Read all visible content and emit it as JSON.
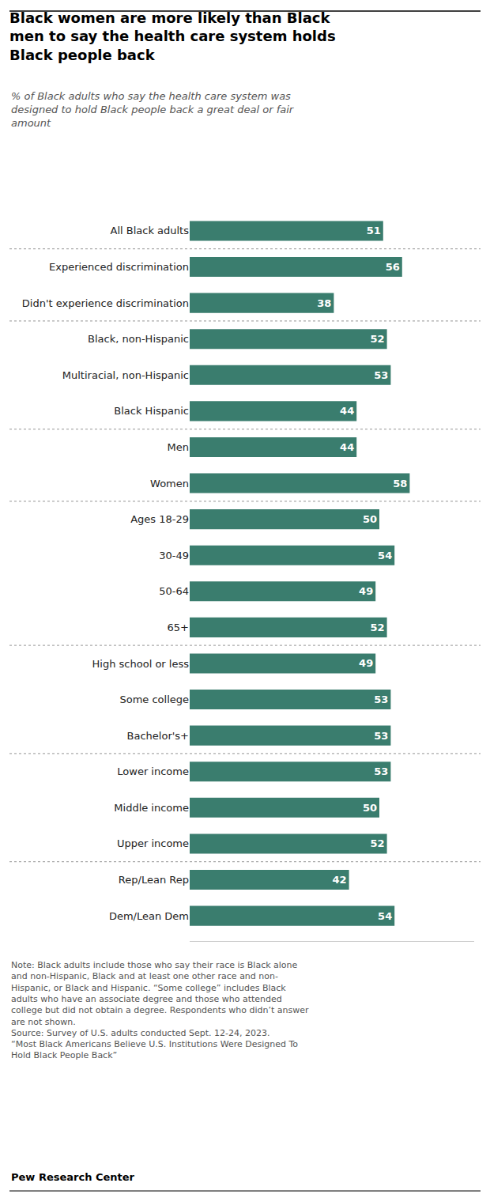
{
  "chart_data": {
    "type": "bar",
    "orientation": "horizontal",
    "title": "Black women are more likely than Black\nmen to say the health care system holds\nBlack people back",
    "subtitle": "% of Black adults who say the health care system was\ndesigned to hold Black people back a great deal or fair\namount",
    "categories": [
      "All Black adults",
      "Experienced discrimination",
      "Didn't experience discrimination",
      "Black, non-Hispanic",
      "Multiracial, non-Hispanic",
      "Black Hispanic",
      "Men",
      "Women",
      "Ages 18-29",
      "30-49",
      "50-64",
      "65+",
      "High school or less",
      "Some college",
      "Bachelor's+",
      "Lower income",
      "Middle income",
      "Upper income",
      "Rep/Lean Rep",
      "Dem/Lean Dem"
    ],
    "values": [
      51,
      56,
      38,
      52,
      53,
      44,
      44,
      58,
      50,
      54,
      49,
      52,
      49,
      53,
      53,
      53,
      50,
      52,
      42,
      54
    ],
    "color": "#3a7d6e",
    "xlim": [
      0,
      75
    ],
    "grid": false,
    "data_labels": true,
    "tick_labels": "y",
    "annotations": [
      "Note: Black adults include those who say their race is Black alone\nand non-Hispanic, Black and at least one other race and non-\nHispanic, or Black and Hispanic. “Some college” includes Black\nadults who have an associate degree and those who attended\ncollege but did not obtain a degree. Respondents who didn’t answer\nare not shown.\nSource: Survey of U.S. adults conducted Sept. 12-24, 2023.\n“Most Black Americans Believe U.S. Institutions Were Designed To\nHold Black People Back”",
      "Pew Research Center"
    ]
  }
}
